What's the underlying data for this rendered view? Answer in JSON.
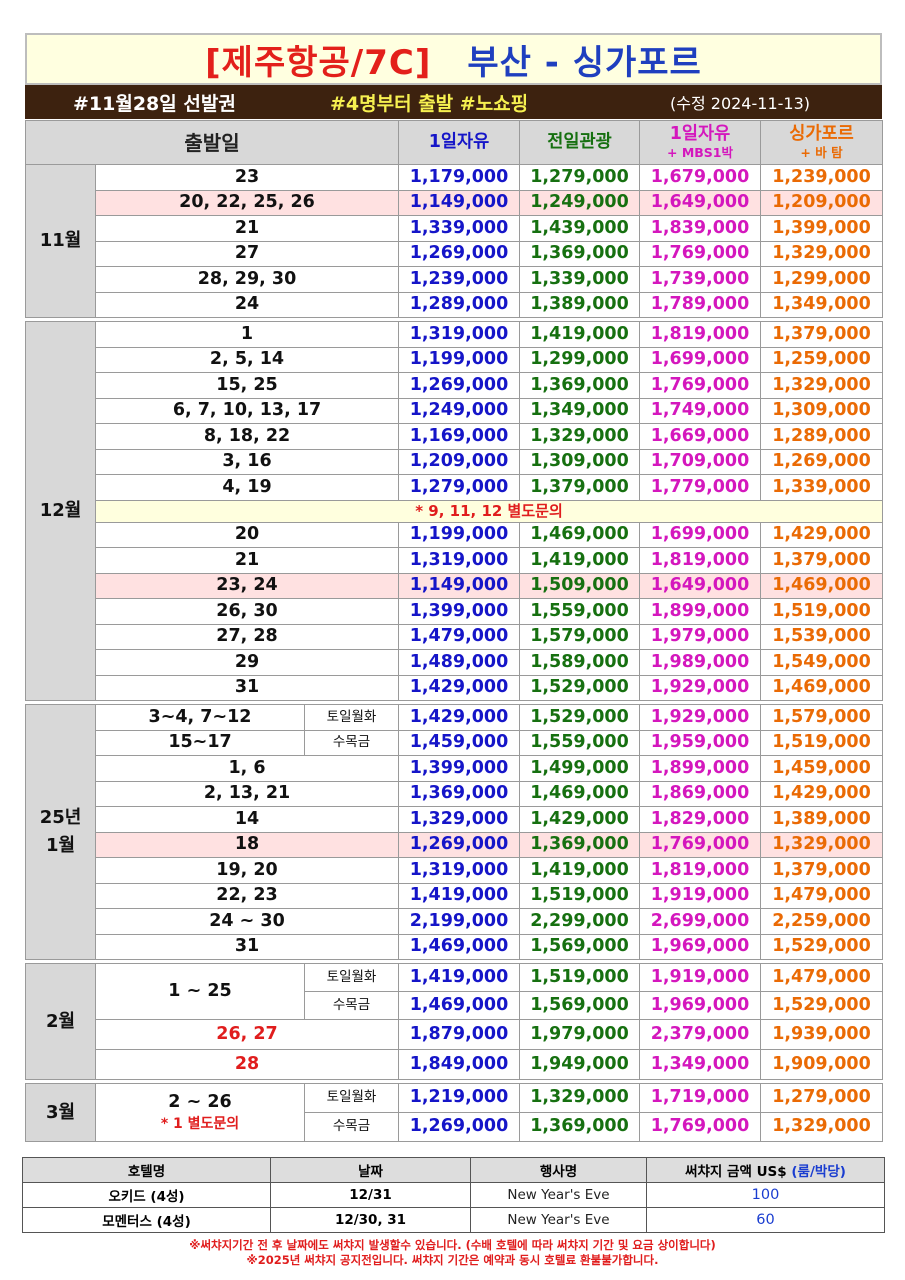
{
  "title": {
    "airline": "[제주항공/7C]",
    "route": "부산 - 싱가포르"
  },
  "band": {
    "promo": "#11월28일 선발권",
    "group": "#4명부터 출발 #노쇼핑",
    "revised": "(수정 2024-11-13)"
  },
  "header": {
    "date": "출발일",
    "col1": "1일자유",
    "col2": "전일관광",
    "col3": "1일자유",
    "col3_sub": "+ MBS1박",
    "col4": "싱가포르",
    "col4_sub": "+ 바 탐"
  },
  "months": {
    "nov": "11월",
    "dec": "12월",
    "jan_a": "25년",
    "jan_b": "1월",
    "feb": "2월",
    "mar": "3월"
  },
  "rows": {
    "nov": [
      [
        "23",
        "1,179,000",
        "1,279,000",
        "1,679,000",
        "1,239,000"
      ],
      [
        "20, 22, 25, 26",
        "1,149,000",
        "1,249,000",
        "1,649,000",
        "1,209,000"
      ],
      [
        "21",
        "1,339,000",
        "1,439,000",
        "1,839,000",
        "1,399,000"
      ],
      [
        "27",
        "1,269,000",
        "1,369,000",
        "1,769,000",
        "1,329,000"
      ],
      [
        "28, 29, 30",
        "1,239,000",
        "1,339,000",
        "1,739,000",
        "1,299,000"
      ],
      [
        "24",
        "1,289,000",
        "1,389,000",
        "1,789,000",
        "1,349,000"
      ]
    ],
    "dec_a": [
      [
        "1",
        "1,319,000",
        "1,419,000",
        "1,819,000",
        "1,379,000"
      ],
      [
        "2, 5, 14",
        "1,199,000",
        "1,299,000",
        "1,699,000",
        "1,259,000"
      ],
      [
        "15, 25",
        "1,269,000",
        "1,369,000",
        "1,769,000",
        "1,329,000"
      ],
      [
        "6, 7, 10, 13, 17",
        "1,249,000",
        "1,349,000",
        "1,749,000",
        "1,309,000"
      ],
      [
        "8, 18, 22",
        "1,169,000",
        "1,329,000",
        "1,669,000",
        "1,289,000"
      ],
      [
        "3, 16",
        "1,209,000",
        "1,309,000",
        "1,709,000",
        "1,269,000"
      ],
      [
        "4, 19",
        "1,279,000",
        "1,379,000",
        "1,779,000",
        "1,339,000"
      ]
    ],
    "dec_note": "* 9, 11, 12 별도문의",
    "dec_b": [
      [
        "20",
        "1,199,000",
        "1,469,000",
        "1,699,000",
        "1,429,000"
      ],
      [
        "21",
        "1,319,000",
        "1,419,000",
        "1,819,000",
        "1,379,000"
      ],
      [
        "23, 24",
        "1,149,000",
        "1,509,000",
        "1,649,000",
        "1,469,000"
      ],
      [
        "26, 30",
        "1,399,000",
        "1,559,000",
        "1,899,000",
        "1,519,000"
      ],
      [
        "27, 28",
        "1,479,000",
        "1,579,000",
        "1,979,000",
        "1,539,000"
      ],
      [
        "29",
        "1,489,000",
        "1,589,000",
        "1,989,000",
        "1,549,000"
      ],
      [
        "31",
        "1,429,000",
        "1,529,000",
        "1,929,000",
        "1,469,000"
      ]
    ],
    "jan_split": [
      [
        "3~4, 7~12",
        "토일월화",
        "1,429,000",
        "1,529,000",
        "1,929,000",
        "1,579,000"
      ],
      [
        "15~17",
        "수목금",
        "1,459,000",
        "1,559,000",
        "1,959,000",
        "1,519,000"
      ]
    ],
    "jan": [
      [
        "1, 6",
        "1,399,000",
        "1,499,000",
        "1,899,000",
        "1,459,000"
      ],
      [
        "2, 13, 21",
        "1,369,000",
        "1,469,000",
        "1,869,000",
        "1,429,000"
      ],
      [
        "14",
        "1,329,000",
        "1,429,000",
        "1,829,000",
        "1,389,000"
      ],
      [
        "18",
        "1,269,000",
        "1,369,000",
        "1,769,000",
        "1,329,000"
      ],
      [
        "19, 20",
        "1,319,000",
        "1,419,000",
        "1,819,000",
        "1,379,000"
      ],
      [
        "22, 23",
        "1,419,000",
        "1,519,000",
        "1,919,000",
        "1,479,000"
      ],
      [
        "24 ~ 30",
        "2,199,000",
        "2,299,000",
        "2,699,000",
        "2,259,000"
      ],
      [
        "31",
        "1,469,000",
        "1,569,000",
        "1,969,000",
        "1,529,000"
      ]
    ],
    "feb_dates": "1 ~ 25",
    "feb_split": [
      [
        "토일월화",
        "1,419,000",
        "1,519,000",
        "1,919,000",
        "1,479,000"
      ],
      [
        "수목금",
        "1,469,000",
        "1,569,000",
        "1,969,000",
        "1,529,000"
      ]
    ],
    "feb": [
      [
        "26, 27",
        "1,879,000",
        "1,979,000",
        "2,379,000",
        "1,939,000"
      ],
      [
        "28",
        "1,849,000",
        "1,949,000",
        "1,349,000",
        "1,909,000"
      ]
    ],
    "mar_dates": "2 ~ 26",
    "mar_note": "* 1 별도문의",
    "mar_split": [
      [
        "토일월화",
        "1,219,000",
        "1,329,000",
        "1,719,000",
        "1,279,000"
      ],
      [
        "수목금",
        "1,269,000",
        "1,369,000",
        "1,769,000",
        "1,329,000"
      ]
    ]
  },
  "hotels": {
    "headers": [
      "호텔명",
      "날짜",
      "행사명",
      "써챠지 금액"
    ],
    "header_unit": "US$",
    "header_unit2": "(룸/박당)",
    "rows": [
      [
        "오키드 (4성)",
        "12/31",
        "New Year's Eve",
        "100"
      ],
      [
        "모멘터스 (4성)",
        "12/30, 31",
        "New Year's Eve",
        "60"
      ]
    ]
  },
  "footer": {
    "line1": "※써챠지기간 전 후 날짜에도 써챠지 발생할수 있습니다. (수배 호텔에 따라 써챠지 기간 및 요금 상이합니다)",
    "line2": "※2025년 써챠지 공지전입니다. 써챠지 기간은 예약과 동시 호텔료 환불불가합니다."
  },
  "colors": {
    "blue": "#1515c8",
    "green": "#167010",
    "magenta": "#d417bd",
    "orange": "#ea6a04",
    "red": "#e01d1d",
    "band": "#3d220f",
    "title_bg": "#FFFFE0",
    "pink_row": "#ffe1e1"
  }
}
